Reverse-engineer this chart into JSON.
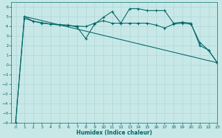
{
  "title": "",
  "xlabel": "Humidex (Indice chaleur)",
  "ylabel": "",
  "bg_color": "#c8e8e8",
  "line_color": "#006666",
  "grid_color": "#afd4d4",
  "xlim": [
    -0.5,
    23
  ],
  "ylim": [
    -6,
    6.5
  ],
  "xticks": [
    0,
    1,
    2,
    3,
    4,
    5,
    6,
    7,
    8,
    9,
    10,
    11,
    12,
    13,
    14,
    15,
    16,
    17,
    18,
    19,
    20,
    21,
    22,
    23
  ],
  "yticks": [
    -6,
    -5,
    -4,
    -3,
    -2,
    -1,
    0,
    1,
    2,
    3,
    4,
    5,
    6
  ],
  "line1_x": [
    0,
    1,
    2,
    3,
    4,
    5,
    6,
    7,
    8,
    9,
    10,
    11,
    12,
    13,
    14,
    15,
    16,
    17,
    18,
    19,
    20,
    21,
    22,
    23
  ],
  "line1_y": [
    -6,
    5.0,
    4.5,
    4.3,
    4.2,
    4.15,
    4.1,
    3.9,
    2.7,
    4.2,
    4.9,
    5.5,
    4.3,
    5.8,
    5.8,
    5.6,
    5.6,
    5.6,
    4.3,
    4.4,
    4.3,
    2.0,
    1.5,
    0.2
  ],
  "line2_x": [
    1,
    23
  ],
  "line2_y": [
    5.0,
    0.2
  ],
  "line3_x": [
    0,
    1,
    2,
    3,
    4,
    5,
    6,
    7,
    8,
    9,
    10,
    11,
    12,
    13,
    14,
    15,
    16,
    17,
    18,
    19,
    20,
    21,
    22,
    23
  ],
  "line3_y": [
    -6,
    4.8,
    4.5,
    4.35,
    4.2,
    4.1,
    4.05,
    4.0,
    3.95,
    4.3,
    4.55,
    4.3,
    4.3,
    4.3,
    4.3,
    4.3,
    4.1,
    3.8,
    4.2,
    4.3,
    4.2,
    2.3,
    1.5,
    0.2
  ]
}
